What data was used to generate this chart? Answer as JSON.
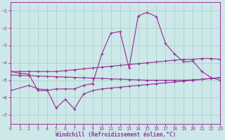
{
  "bg_color": "#cce8e8",
  "grid_color": "#aacccc",
  "line_color": "#993399",
  "xlim": [
    0,
    23
  ],
  "ylim": [
    -7.5,
    -0.5
  ],
  "yticks": [
    -7,
    -6,
    -5,
    -4,
    -3,
    -2,
    -1
  ],
  "xticks": [
    0,
    1,
    2,
    3,
    4,
    5,
    6,
    7,
    8,
    9,
    10,
    11,
    12,
    13,
    14,
    15,
    16,
    17,
    18,
    19,
    20,
    21,
    22,
    23
  ],
  "xlabel": "Windchill (Refroidissement éolien,°C)",
  "line_A_x": [
    0,
    1,
    2,
    3,
    4,
    5,
    6,
    7,
    8,
    9,
    10,
    11,
    12,
    13,
    14,
    15,
    16,
    17,
    18,
    19,
    20,
    21,
    22,
    23
  ],
  "line_A_y": [
    -4.5,
    -4.5,
    -4.5,
    -4.5,
    -4.5,
    -4.5,
    -4.45,
    -4.4,
    -4.35,
    -4.3,
    -4.25,
    -4.2,
    -4.15,
    -4.1,
    -4.05,
    -4.0,
    -3.95,
    -3.9,
    -3.85,
    -3.8,
    -3.8,
    -3.75,
    -3.75,
    -3.8
  ],
  "line_B_x": [
    0,
    1,
    2,
    3,
    4,
    5,
    6,
    7,
    8,
    9,
    10,
    11,
    12,
    13,
    14,
    15,
    16,
    17,
    18,
    19,
    20,
    21,
    22,
    23
  ],
  "line_B_y": [
    -4.7,
    -4.72,
    -4.74,
    -4.76,
    -4.78,
    -4.8,
    -4.82,
    -4.84,
    -4.86,
    -4.88,
    -4.9,
    -4.92,
    -4.94,
    -4.96,
    -4.98,
    -5.0,
    -5.0,
    -5.0,
    -5.0,
    -5.0,
    -4.98,
    -4.95,
    -4.9,
    -4.85
  ],
  "line_C_x": [
    0,
    1,
    2,
    3,
    4,
    5,
    6,
    7,
    8,
    9,
    10,
    11,
    12,
    13,
    14,
    15,
    16,
    17,
    18,
    19,
    20,
    21,
    22,
    23
  ],
  "line_C_y": [
    -4.5,
    -4.6,
    -4.65,
    -5.6,
    -5.6,
    -5.5,
    -5.5,
    -5.5,
    -5.3,
    -5.2,
    -3.5,
    -2.3,
    -2.2,
    -4.3,
    -1.3,
    -1.1,
    -1.35,
    -2.9,
    -3.5,
    -3.95,
    -3.9,
    -4.5,
    -4.85,
    -5.0
  ],
  "line_D_x": [
    0,
    2,
    3,
    4,
    5,
    6,
    7,
    8,
    9,
    10,
    11,
    12,
    13,
    14,
    15,
    16,
    17,
    18,
    19,
    20,
    21,
    22,
    23
  ],
  "line_D_y": [
    -5.6,
    -5.3,
    -5.5,
    -5.55,
    -6.6,
    -6.1,
    -6.65,
    -5.8,
    -5.6,
    -5.5,
    -5.45,
    -5.4,
    -5.35,
    -5.3,
    -5.25,
    -5.2,
    -5.15,
    -5.1,
    -5.05,
    -5.0,
    -4.95,
    -4.9,
    -4.85
  ]
}
